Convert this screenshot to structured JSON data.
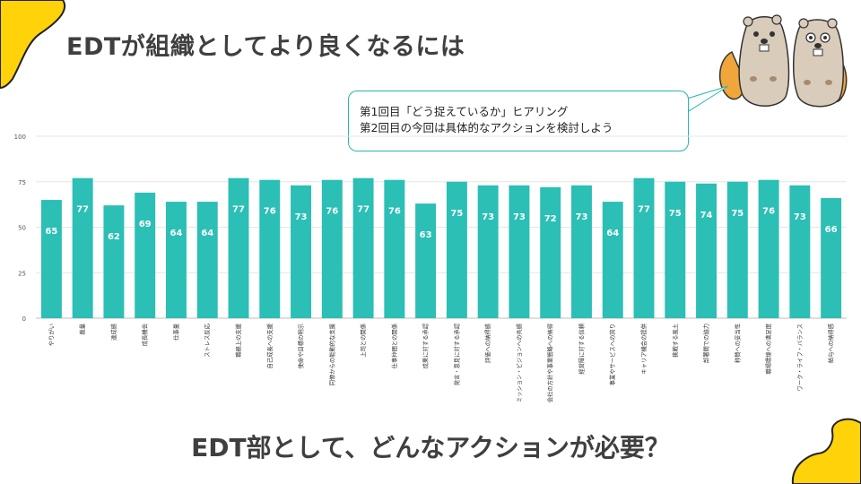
{
  "slide": {
    "title": "EDTが組織としてより良くなるには",
    "question": "EDT部として、どんなアクションが必要？"
  },
  "callout": {
    "line1": "第1回目「どう捉えているか」ヒアリング",
    "line2": "第2回目の今回は具体的なアクションを検討しよう"
  },
  "colors": {
    "bar": "#2bbfb5",
    "accent_yellow": "#ffd20a",
    "text": "#3f3f3f",
    "grid": "#e6e6e6"
  },
  "chart_data": {
    "type": "bar",
    "categories": [
      "やりがい",
      "裁量",
      "達成感",
      "成長機会",
      "仕事量",
      "ストレス反応",
      "職務上の支援",
      "自己成長への支援",
      "使命や目標の明示",
      "同僚からの能動的な支援",
      "上司との関係",
      "仕事仲間との関係",
      "成果に対する承認",
      "発言・意見に対する承認",
      "評価への納得感",
      "ミッション・ビジョンへの共感",
      "会社の方針や事業戦略への納得",
      "経営陣に対する信頼",
      "事業やサービスへの誇り",
      "キャリア機会の提供",
      "挑戦する風土",
      "部署間での協力",
      "称賛への妥当性",
      "職場環境への満足度",
      "ワーク・ライフ・バランス",
      "給与への納得感"
    ],
    "values": [
      65,
      77,
      62,
      69,
      64,
      64,
      77,
      76,
      73,
      76,
      77,
      76,
      63,
      75,
      73,
      73,
      72,
      73,
      64,
      77,
      75,
      74,
      75,
      76,
      73,
      66
    ],
    "ylim": [
      0,
      100
    ],
    "yticks": [
      0,
      25,
      50,
      75,
      100
    ],
    "data_labels": true,
    "grid": true,
    "title": "",
    "xlabel": "",
    "ylabel": ""
  }
}
